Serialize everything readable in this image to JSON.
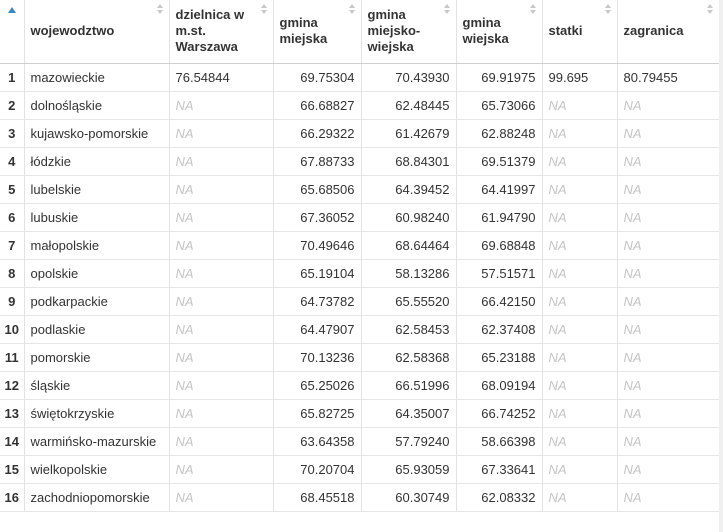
{
  "columns": [
    {
      "key": "idx",
      "label": ""
    },
    {
      "key": "wojewodztwo",
      "label": "wojewodztwo"
    },
    {
      "key": "dzielnica",
      "label": "dzielnica w m.st. Warszawa"
    },
    {
      "key": "gmina_miejska",
      "label": "gmina miejska"
    },
    {
      "key": "gmina_miejsko_wiejska",
      "label": "gmina miejsko-wiejska"
    },
    {
      "key": "gmina_wiejska",
      "label": "gmina wiejska"
    },
    {
      "key": "statki",
      "label": "statki"
    },
    {
      "key": "zagranica",
      "label": "zagranica"
    }
  ],
  "rows": [
    [
      "1",
      "mazowieckie",
      "76.54844",
      "69.75304",
      "70.43930",
      "69.91975",
      "99.695",
      "80.79455"
    ],
    [
      "2",
      "dolnośląskie",
      "NA",
      "66.68827",
      "62.48445",
      "65.73066",
      "NA",
      "NA"
    ],
    [
      "3",
      "kujawsko-pomorskie",
      "NA",
      "66.29322",
      "61.42679",
      "62.88248",
      "NA",
      "NA"
    ],
    [
      "4",
      "łódzkie",
      "NA",
      "67.88733",
      "68.84301",
      "69.51379",
      "NA",
      "NA"
    ],
    [
      "5",
      "lubelskie",
      "NA",
      "65.68506",
      "64.39452",
      "64.41997",
      "NA",
      "NA"
    ],
    [
      "6",
      "lubuskie",
      "NA",
      "67.36052",
      "60.98240",
      "61.94790",
      "NA",
      "NA"
    ],
    [
      "7",
      "małopolskie",
      "NA",
      "70.49646",
      "68.64464",
      "69.68848",
      "NA",
      "NA"
    ],
    [
      "8",
      "opolskie",
      "NA",
      "65.19104",
      "58.13286",
      "57.51571",
      "NA",
      "NA"
    ],
    [
      "9",
      "podkarpackie",
      "NA",
      "64.73782",
      "65.55520",
      "66.42150",
      "NA",
      "NA"
    ],
    [
      "10",
      "podlaskie",
      "NA",
      "64.47907",
      "62.58453",
      "62.37408",
      "NA",
      "NA"
    ],
    [
      "11",
      "pomorskie",
      "NA",
      "70.13236",
      "62.58368",
      "65.23188",
      "NA",
      "NA"
    ],
    [
      "12",
      "śląskie",
      "NA",
      "65.25026",
      "66.51996",
      "68.09194",
      "NA",
      "NA"
    ],
    [
      "13",
      "świętokrzyskie",
      "NA",
      "65.82725",
      "64.35007",
      "66.74252",
      "NA",
      "NA"
    ],
    [
      "14",
      "warmińsko-mazurskie",
      "NA",
      "63.64358",
      "57.79240",
      "58.66398",
      "NA",
      "NA"
    ],
    [
      "15",
      "wielkopolskie",
      "NA",
      "70.20704",
      "65.93059",
      "67.33641",
      "NA",
      "NA"
    ],
    [
      "16",
      "zachodniopomorskie",
      "NA",
      "68.45518",
      "60.30749",
      "62.08332",
      "NA",
      "NA"
    ]
  ],
  "icons": {
    "index_sort": "sort-ascending-icon",
    "column_sort": "sort-icon"
  },
  "colors": {
    "na": "#c4c4c4",
    "sort_active": "#3a86c8",
    "sort_inactive": "#c8c8c8"
  }
}
